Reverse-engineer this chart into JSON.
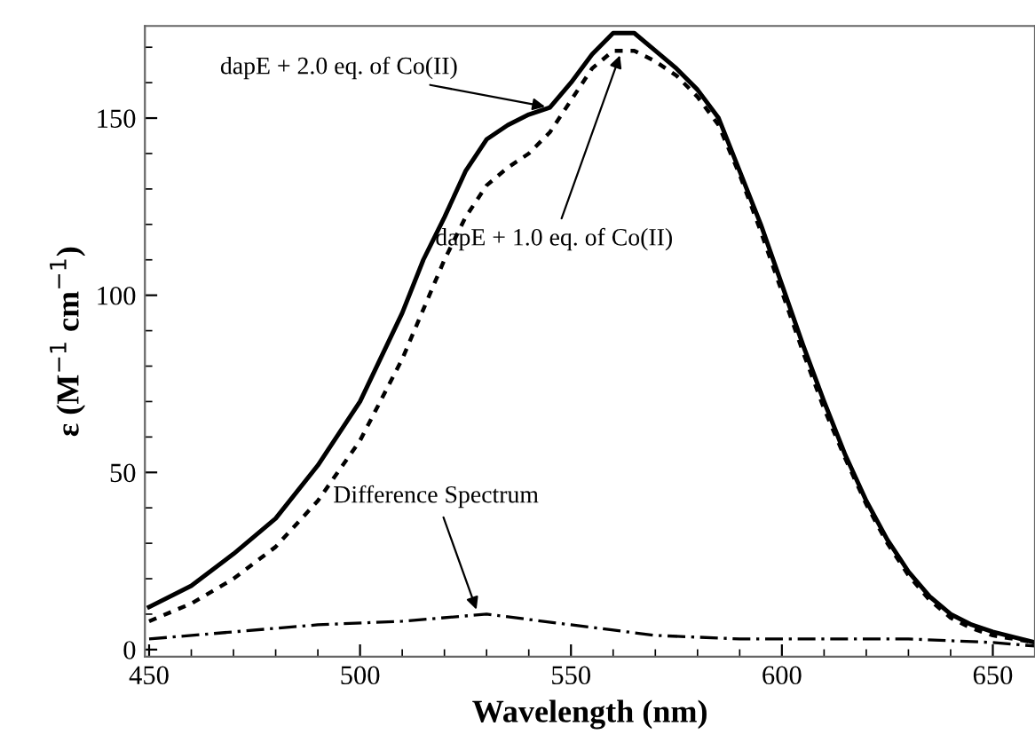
{
  "chart_data": {
    "type": "line",
    "xlabel": "Wavelength (nm)",
    "ylabel": "ε (M$^{−1}$ cm$^{−1}$)",
    "xlim": [
      449,
      660
    ],
    "ylim": [
      -2,
      176
    ],
    "xticks": [
      450,
      500,
      550,
      600,
      650
    ],
    "yticks": [
      0,
      50,
      100,
      150
    ],
    "grid": false,
    "legend": false,
    "series": [
      {
        "color": "#000000",
        "line_style": "solid",
        "x": [
          450,
          460,
          470,
          480,
          490,
          500,
          510,
          515,
          520,
          525,
          530,
          535,
          540,
          545,
          550,
          555,
          560,
          565,
          570,
          575,
          580,
          585,
          590,
          595,
          600,
          605,
          610,
          615,
          620,
          625,
          630,
          635,
          640,
          645,
          650,
          655,
          660
        ],
        "values": [
          12,
          18,
          27,
          37,
          52,
          70,
          95,
          110,
          122,
          135,
          144,
          148,
          151,
          153,
          160,
          168,
          174,
          174,
          169,
          164,
          158,
          150,
          135,
          120,
          103,
          86,
          70,
          55,
          42,
          31,
          22,
          15,
          10,
          7,
          5,
          3.5,
          2
        ]
      },
      {
        "color": "#000000",
        "line_style": "dotted",
        "x": [
          450,
          460,
          470,
          480,
          490,
          500,
          510,
          515,
          520,
          525,
          530,
          535,
          540,
          545,
          550,
          555,
          560,
          565,
          570,
          575,
          580,
          585,
          590,
          595,
          600,
          605,
          610,
          615,
          620,
          625,
          630,
          635,
          640,
          645,
          650,
          655,
          660
        ],
        "values": [
          8,
          13,
          20,
          29,
          42,
          59,
          82,
          96,
          110,
          122,
          131,
          136,
          140,
          146,
          155,
          164,
          169,
          169,
          166,
          162,
          156,
          148,
          134,
          118,
          101,
          84,
          68,
          54,
          41,
          30,
          21,
          14,
          9,
          6,
          4,
          3,
          2
        ]
      },
      {
        "color": "#000000",
        "line_style": "dashdot",
        "x": [
          450,
          470,
          490,
          510,
          530,
          550,
          570,
          590,
          610,
          630,
          650,
          660
        ],
        "values": [
          3,
          5,
          7,
          8,
          10,
          7,
          4,
          3,
          3,
          3,
          2,
          1
        ]
      }
    ],
    "annotations": [
      {
        "text": "dapE + 2.0 eq. of Co(II)",
        "x": 545,
        "y": 153
      },
      {
        "text": "dapE + 1.0 eq. of Co(II)",
        "x": 562,
        "y": 169
      },
      {
        "text": "Difference Spectrum",
        "x": 528,
        "y": 10
      }
    ]
  }
}
